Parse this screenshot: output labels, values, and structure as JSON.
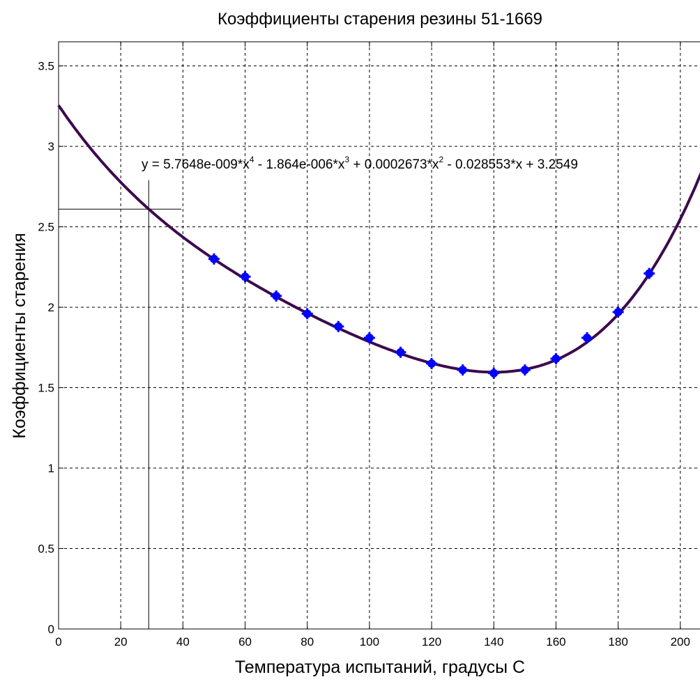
{
  "chart_data": {
    "type": "scatter",
    "title": "Коэффициенты старения резины 51-1669",
    "xlabel": "Температура испытаний, градусы С",
    "ylabel": "Коэффициенты старения",
    "xlim": [
      0,
      207
    ],
    "ylim": [
      0,
      3.65
    ],
    "grid": true,
    "x_ticks": [
      0,
      20,
      40,
      60,
      80,
      100,
      120,
      140,
      160,
      180,
      200
    ],
    "y_ticks": [
      0,
      0.5,
      1,
      1.5,
      2,
      2.5,
      3,
      3.5
    ],
    "x_tick_labels": [
      "0",
      "20",
      "40",
      "60",
      "80",
      "100",
      "120",
      "140",
      "160",
      "180",
      "200"
    ],
    "y_tick_labels": [
      "0",
      "0.5",
      "1",
      "1.5",
      "2",
      "2.5",
      "3",
      "3.5"
    ],
    "points": {
      "color": "#0000ff",
      "x": [
        50,
        60,
        70,
        80,
        90,
        100,
        110,
        120,
        130,
        140,
        150,
        160,
        170,
        180,
        190
      ],
      "y": [
        2.3,
        2.19,
        2.07,
        1.96,
        1.88,
        1.81,
        1.72,
        1.65,
        1.61,
        1.59,
        1.61,
        1.68,
        1.81,
        1.97,
        2.21
      ]
    },
    "fit": {
      "color": "#3d0a4d",
      "coefficients": [
        5.7648e-09,
        -1.864e-06,
        0.0002673,
        -0.028553,
        3.2549
      ],
      "x_range": [
        0,
        207
      ]
    },
    "equation": {
      "prefix": "y = 5.7648e-009*x",
      "p1": "4",
      "mid1": " - 1.864e-006*x",
      "p2": "3",
      "mid2": " + 0.0002673*x",
      "p3": "2",
      "suffix": " - 0.028553*x + 3.2549"
    },
    "reference_lines": {
      "vertical_x": 29,
      "horizontal_y": 2.61
    }
  }
}
